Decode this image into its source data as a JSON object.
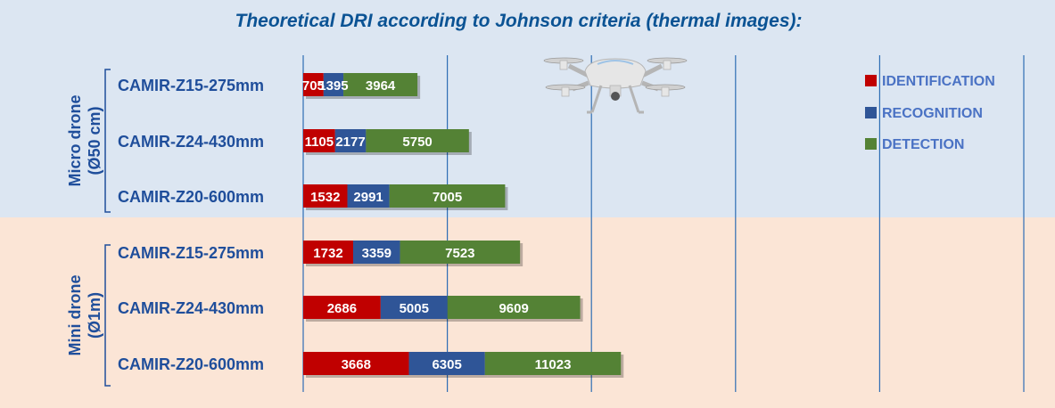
{
  "colors": {
    "identification": "#c00000",
    "recognition": "#2f5597",
    "detection": "#548235",
    "panel_top": "#dce6f2",
    "panel_bottom": "#fbe5d6",
    "text_blue": "#1f4e9b",
    "title_blue": "#0b5394",
    "legend_text": "#4a72c4",
    "gridline": "#2e6db4"
  },
  "chart_data": {
    "type": "bar",
    "orientation": "horizontal",
    "stacked": true,
    "title": "Theoretical DRI according to Johnson criteria (thermal images):",
    "groups": [
      {
        "label": "Micro drone (Ø50 cm)",
        "categories": [
          "CAMIR-Z15-275mm",
          "CAMIR-Z24-430mm",
          "CAMIR-Z20-600mm"
        ]
      },
      {
        "label": "Mini drone (Ø1m)",
        "categories": [
          "CAMIR-Z15-275mm",
          "CAMIR-Z24-430mm",
          "CAMIR-Z20-600mm"
        ]
      }
    ],
    "series": [
      {
        "name": "IDENTIFICATION",
        "values": [
          705,
          1105,
          1532,
          1732,
          2686,
          3668
        ]
      },
      {
        "name": "RECOGNITION",
        "values": [
          1395,
          2177,
          2991,
          3359,
          5005,
          6305
        ]
      },
      {
        "name": "DETECTION",
        "values": [
          3964,
          5750,
          7005,
          7523,
          9609,
          11023
        ]
      }
    ],
    "xlim": [
      0,
      25000
    ],
    "grid_step": 5000,
    "grid": true,
    "legend_position": "top-right",
    "image": "drone-icon"
  }
}
